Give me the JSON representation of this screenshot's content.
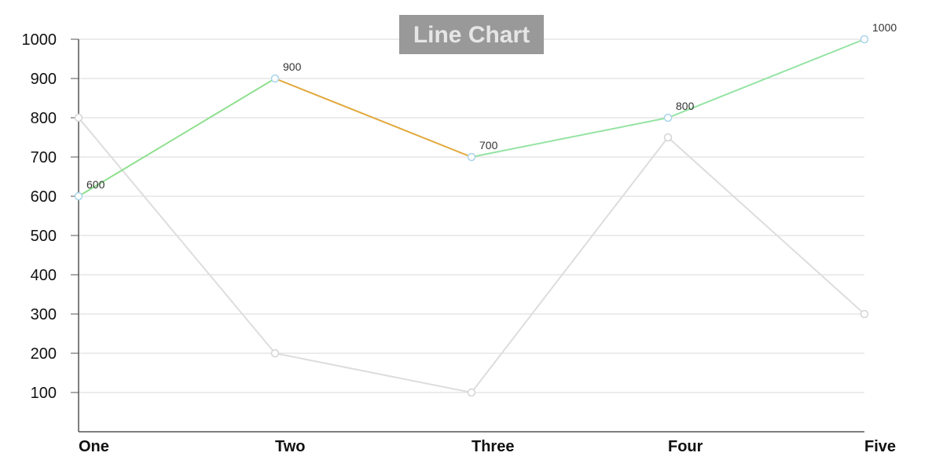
{
  "chart_data": {
    "type": "line",
    "title": "Line Chart",
    "categories": [
      "One",
      "Two",
      "Three",
      "Four",
      "Five"
    ],
    "yticks": [
      100,
      200,
      300,
      400,
      500,
      600,
      700,
      800,
      900,
      1000
    ],
    "ylim": [
      0,
      1000
    ],
    "grid": true,
    "series": [
      {
        "values": [
          600,
          900,
          700,
          800,
          1000
        ],
        "data_labels": [
          "600",
          "900",
          "700",
          "800",
          "1000"
        ],
        "segment_colors": [
          "#8fe08f",
          "#e0a73a",
          "#95e3a3",
          "#95e3a3"
        ],
        "marker_color": "#a9d4ea"
      },
      {
        "values": [
          800,
          200,
          100,
          750,
          300
        ],
        "color": "#dddddd",
        "marker_color": "#d4d4d4"
      }
    ]
  },
  "colors": {
    "title_bg": "#999999",
    "title_text": "#e6e6e6",
    "axis": "#555555",
    "grid": "#d9d9d9"
  }
}
